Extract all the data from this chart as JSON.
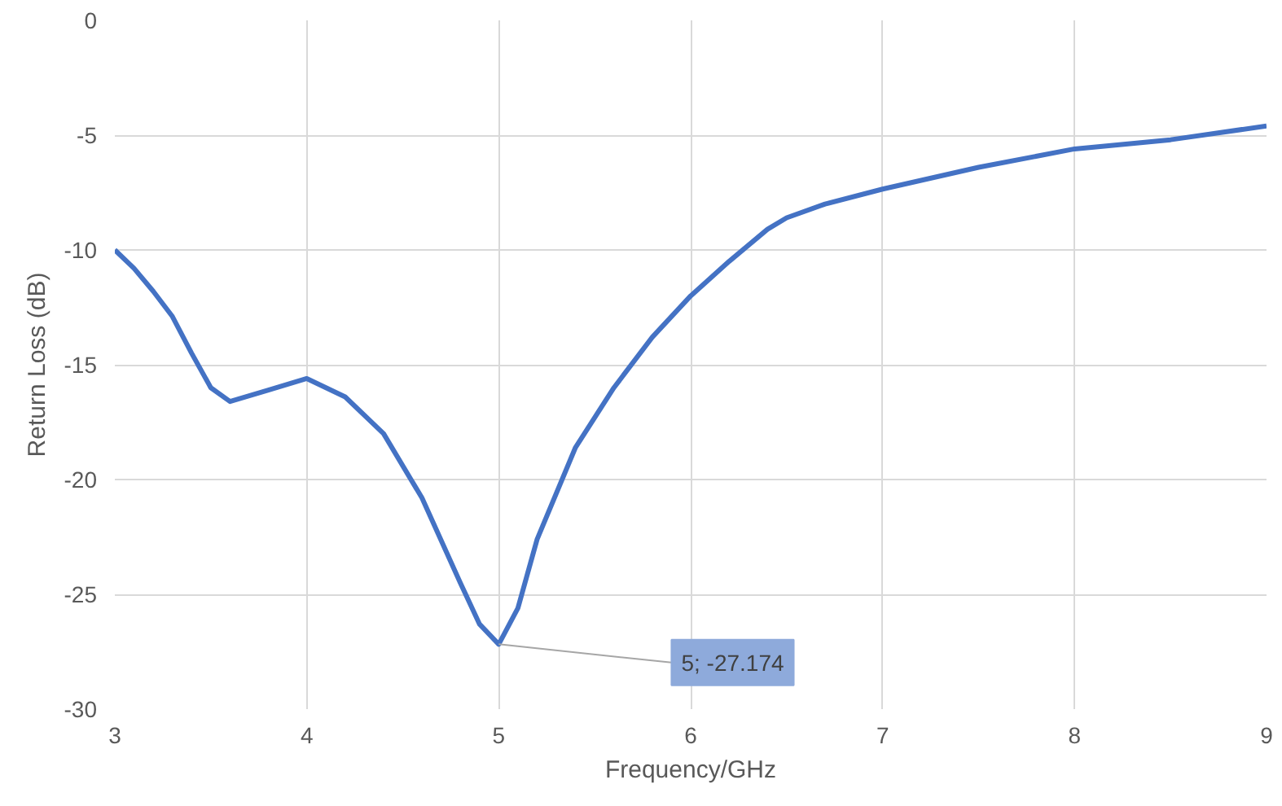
{
  "chart_data": {
    "type": "line",
    "xlabel": "Frequency/GHz",
    "ylabel": "Return Loss (dB)",
    "x": [
      3,
      3.1,
      3.2,
      3.3,
      3.4,
      3.5,
      3.6,
      3.8,
      4,
      4.2,
      4.4,
      4.6,
      4.8,
      4.9,
      5,
      5.1,
      5.2,
      5.4,
      5.6,
      5.8,
      6,
      6.2,
      6.4,
      6.5,
      6.7,
      7,
      7.5,
      8,
      8.5,
      9
    ],
    "series": [
      {
        "color": "#4472c4",
        "values": [
          -10,
          -10.8,
          -11.8,
          -12.9,
          -14.5,
          -16.0,
          -16.6,
          -16.1,
          -15.6,
          -16.4,
          -18.0,
          -20.8,
          -24.5,
          -26.3,
          -27.174,
          -25.6,
          -22.6,
          -18.6,
          -16.0,
          -13.8,
          -12.0,
          -10.5,
          -9.1,
          -8.6,
          -8.0,
          -7.35,
          -6.4,
          -5.6,
          -5.2,
          -4.6
        ]
      }
    ],
    "xlim": [
      3,
      9
    ],
    "ylim": [
      -30,
      0
    ],
    "xticks": [
      3,
      4,
      5,
      6,
      7,
      8,
      9
    ],
    "yticks": [
      -30,
      -25,
      -20,
      -15,
      -10,
      -5,
      0
    ],
    "grid": true,
    "annotations": [
      {
        "text": "5; -27.174",
        "x": 5,
        "y": -27.174
      }
    ]
  }
}
